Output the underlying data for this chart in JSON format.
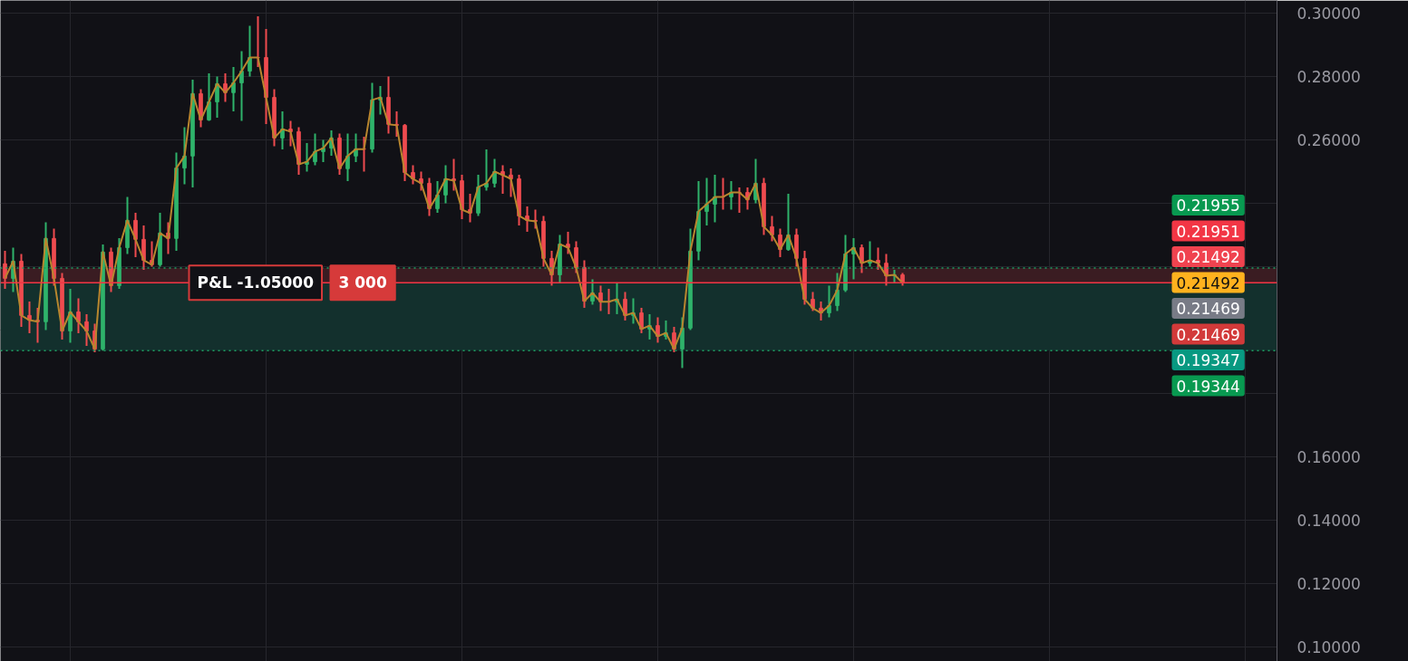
{
  "chart_data": {
    "type": "candlestick",
    "categories": [
      null,
      null,
      null,
      null,
      null,
      null,
      null,
      null,
      null,
      null,
      null,
      null,
      null,
      null,
      null,
      null,
      null,
      null,
      null,
      null,
      null,
      null,
      null,
      null,
      null,
      null,
      null,
      null,
      null,
      null,
      null,
      null,
      null,
      null,
      null,
      null,
      null,
      null,
      null,
      null,
      null,
      null,
      null,
      null,
      null,
      null,
      null,
      null,
      null,
      null,
      null,
      null,
      null,
      null,
      null,
      null,
      null,
      null,
      null,
      null,
      null,
      null,
      null,
      null,
      null,
      null,
      null,
      null,
      null,
      null,
      null,
      null,
      null,
      null,
      null,
      null,
      null,
      null,
      null,
      null,
      null,
      null,
      null,
      null,
      null,
      null,
      null,
      null,
      null,
      null,
      null,
      null,
      null,
      null,
      null,
      null,
      null,
      null,
      null,
      null,
      null,
      null,
      null,
      null,
      null,
      null,
      null,
      null,
      null,
      null,
      null
    ],
    "ohlc": [
      [
        0.2209,
        0.225,
        0.213,
        0.2163
      ],
      [
        0.2163,
        0.226,
        0.212,
        0.2217
      ],
      [
        0.2217,
        0.224,
        0.201,
        0.2046
      ],
      [
        0.2046,
        0.209,
        0.199,
        0.2031
      ],
      [
        0.2031,
        0.207,
        0.196,
        0.2026
      ],
      [
        0.2026,
        0.234,
        0.2,
        0.2289
      ],
      [
        0.2289,
        0.232,
        0.214,
        0.2163
      ],
      [
        0.2163,
        0.218,
        0.197,
        0.1997
      ],
      [
        0.1997,
        0.213,
        0.196,
        0.2057
      ],
      [
        0.2057,
        0.21,
        0.199,
        0.2026
      ],
      [
        0.2026,
        0.205,
        0.195,
        0.1997
      ],
      [
        0.1997,
        0.202,
        0.193,
        0.194
      ],
      [
        0.194,
        0.227,
        0.1935,
        0.2246
      ],
      [
        0.2246,
        0.226,
        0.212,
        0.214
      ],
      [
        0.214,
        0.229,
        0.213,
        0.226
      ],
      [
        0.226,
        0.242,
        0.224,
        0.2346
      ],
      [
        0.2346,
        0.237,
        0.223,
        0.2286
      ],
      [
        0.2286,
        0.233,
        0.219,
        0.222
      ],
      [
        0.222,
        0.228,
        0.22,
        0.2206
      ],
      [
        0.2206,
        0.237,
        0.22,
        0.2306
      ],
      [
        0.2306,
        0.234,
        0.224,
        0.2289
      ],
      [
        0.2289,
        0.256,
        0.225,
        0.2511
      ],
      [
        0.2511,
        0.264,
        0.246,
        0.2549
      ],
      [
        0.2549,
        0.279,
        0.245,
        0.2746
      ],
      [
        0.2746,
        0.276,
        0.264,
        0.2663
      ],
      [
        0.2663,
        0.281,
        0.266,
        0.272
      ],
      [
        0.272,
        0.28,
        0.267,
        0.2777
      ],
      [
        0.2777,
        0.281,
        0.272,
        0.2749
      ],
      [
        0.2749,
        0.283,
        0.269,
        0.278
      ],
      [
        0.278,
        0.288,
        0.266,
        0.2817
      ],
      [
        0.2817,
        0.296,
        0.28,
        0.286
      ],
      [
        0.286,
        0.299,
        0.283,
        0.286
      ],
      [
        0.286,
        0.295,
        0.265,
        0.2734
      ],
      [
        0.2734,
        0.276,
        0.258,
        0.2606
      ],
      [
        0.2606,
        0.269,
        0.257,
        0.2634
      ],
      [
        0.2634,
        0.266,
        0.258,
        0.2626
      ],
      [
        0.2626,
        0.264,
        0.249,
        0.2523
      ],
      [
        0.2523,
        0.259,
        0.25,
        0.2531
      ],
      [
        0.2531,
        0.262,
        0.252,
        0.2563
      ],
      [
        0.2563,
        0.26,
        0.253,
        0.2574
      ],
      [
        0.2574,
        0.263,
        0.255,
        0.2606
      ],
      [
        0.2606,
        0.262,
        0.249,
        0.2509
      ],
      [
        0.2509,
        0.262,
        0.247,
        0.2549
      ],
      [
        0.2549,
        0.262,
        0.253,
        0.2571
      ],
      [
        0.2571,
        0.261,
        0.25,
        0.2571
      ],
      [
        0.2571,
        0.278,
        0.256,
        0.2726
      ],
      [
        0.2726,
        0.277,
        0.268,
        0.2734
      ],
      [
        0.2734,
        0.28,
        0.262,
        0.2649
      ],
      [
        0.2649,
        0.269,
        0.261,
        0.2646
      ],
      [
        0.2646,
        0.265,
        0.247,
        0.2497
      ],
      [
        0.2497,
        0.252,
        0.246,
        0.2477
      ],
      [
        0.2477,
        0.25,
        0.244,
        0.2463
      ],
      [
        0.2463,
        0.248,
        0.236,
        0.2383
      ],
      [
        0.2383,
        0.247,
        0.237,
        0.2426
      ],
      [
        0.2426,
        0.252,
        0.24,
        0.2477
      ],
      [
        0.2477,
        0.254,
        0.244,
        0.2471
      ],
      [
        0.2471,
        0.249,
        0.235,
        0.238
      ],
      [
        0.238,
        0.243,
        0.234,
        0.2369
      ],
      [
        0.2369,
        0.249,
        0.236,
        0.2451
      ],
      [
        0.2451,
        0.257,
        0.244,
        0.2463
      ],
      [
        0.2463,
        0.254,
        0.245,
        0.25
      ],
      [
        0.25,
        0.252,
        0.243,
        0.2489
      ],
      [
        0.2489,
        0.251,
        0.242,
        0.2477
      ],
      [
        0.2477,
        0.249,
        0.233,
        0.236
      ],
      [
        0.236,
        0.239,
        0.231,
        0.2346
      ],
      [
        0.2346,
        0.238,
        0.232,
        0.2343
      ],
      [
        0.2343,
        0.236,
        0.22,
        0.2226
      ],
      [
        0.2226,
        0.225,
        0.214,
        0.2174
      ],
      [
        0.2174,
        0.23,
        0.215,
        0.2271
      ],
      [
        0.2271,
        0.231,
        0.224,
        0.226
      ],
      [
        0.226,
        0.228,
        0.218,
        0.2197
      ],
      [
        0.2197,
        0.222,
        0.207,
        0.2091
      ],
      [
        0.2091,
        0.216,
        0.208,
        0.2117
      ],
      [
        0.2117,
        0.214,
        0.206,
        0.2089
      ],
      [
        0.2089,
        0.213,
        0.205,
        0.2089
      ],
      [
        0.2089,
        0.215,
        0.205,
        0.2097
      ],
      [
        0.2097,
        0.212,
        0.203,
        0.2046
      ],
      [
        0.2046,
        0.21,
        0.202,
        0.2054
      ],
      [
        0.2054,
        0.207,
        0.199,
        0.2003
      ],
      [
        0.2003,
        0.205,
        0.197,
        0.2014
      ],
      [
        0.2014,
        0.204,
        0.196,
        0.198
      ],
      [
        0.198,
        0.203,
        0.197,
        0.1991
      ],
      [
        0.1991,
        0.201,
        0.193,
        0.194
      ],
      [
        0.194,
        0.204,
        0.188,
        0.2006
      ],
      [
        0.2006,
        0.232,
        0.2,
        0.2249
      ],
      [
        0.2249,
        0.247,
        0.222,
        0.2374
      ],
      [
        0.2374,
        0.248,
        0.233,
        0.2397
      ],
      [
        0.2397,
        0.249,
        0.234,
        0.242
      ],
      [
        0.242,
        0.248,
        0.238,
        0.242
      ],
      [
        0.242,
        0.247,
        0.238,
        0.2434
      ],
      [
        0.2434,
        0.245,
        0.237,
        0.2434
      ],
      [
        0.2434,
        0.245,
        0.238,
        0.2411
      ],
      [
        0.2411,
        0.254,
        0.24,
        0.2463
      ],
      [
        0.2463,
        0.248,
        0.23,
        0.2326
      ],
      [
        0.2326,
        0.236,
        0.228,
        0.23
      ],
      [
        0.23,
        0.232,
        0.223,
        0.2254
      ],
      [
        0.2254,
        0.243,
        0.225,
        0.23
      ],
      [
        0.23,
        0.232,
        0.22,
        0.2226
      ],
      [
        0.2226,
        0.225,
        0.208,
        0.2097
      ],
      [
        0.2097,
        0.212,
        0.206,
        0.2069
      ],
      [
        0.2069,
        0.209,
        0.203,
        0.2054
      ],
      [
        0.2054,
        0.214,
        0.204,
        0.2077
      ],
      [
        0.2077,
        0.218,
        0.206,
        0.2126
      ],
      [
        0.2126,
        0.23,
        0.212,
        0.224
      ],
      [
        0.224,
        0.229,
        0.216,
        0.226
      ],
      [
        0.226,
        0.227,
        0.218,
        0.2211
      ],
      [
        0.2211,
        0.228,
        0.22,
        0.222
      ],
      [
        0.222,
        0.226,
        0.219,
        0.2211
      ],
      [
        0.2211,
        0.224,
        0.214,
        0.2171
      ],
      [
        0.2171,
        0.219,
        0.215,
        0.2174
      ],
      [
        0.2174,
        0.218,
        0.214,
        0.2149
      ]
    ],
    "series": [
      {
        "type": "line",
        "color": "#b8862e",
        "values": [
          0.2163,
          0.2217,
          0.2046,
          0.2031,
          0.2026,
          0.2289,
          0.2163,
          0.1997,
          0.2057,
          0.2026,
          0.1997,
          0.194,
          0.2246,
          0.214,
          0.226,
          0.2346,
          0.2286,
          0.222,
          0.2206,
          0.2306,
          0.2289,
          0.2511,
          0.2549,
          0.2746,
          0.2663,
          0.272,
          0.2777,
          0.2749,
          0.278,
          0.2817,
          0.286,
          0.286,
          0.2734,
          0.2606,
          0.2634,
          0.2626,
          0.2523,
          0.2531,
          0.2563,
          0.2574,
          0.2606,
          0.2509,
          0.2549,
          0.2571,
          0.2571,
          0.2726,
          0.2734,
          0.2649,
          0.2646,
          0.2497,
          0.2477,
          0.2463,
          0.2383,
          0.2426,
          0.2477,
          0.2471,
          0.238,
          0.2369,
          0.2451,
          0.2463,
          0.25,
          0.2489,
          0.2477,
          0.236,
          0.2346,
          0.2343,
          0.2226,
          0.2174,
          0.2271,
          0.226,
          0.2197,
          0.2091,
          0.2117,
          0.2089,
          0.2089,
          0.2097,
          0.2046,
          0.2054,
          0.2003,
          0.2014,
          0.198,
          0.1991,
          0.194,
          0.2006,
          0.2249,
          0.2374,
          0.2397,
          0.242,
          0.242,
          0.2434,
          0.2434,
          0.2411,
          0.2463,
          0.2326,
          0.23,
          0.2254,
          0.23,
          0.2226,
          0.2097,
          0.2069,
          0.2054,
          0.2077,
          0.2126,
          0.224,
          0.226,
          0.2211,
          0.222,
          0.2211,
          0.2171,
          0.2174,
          0.2149
        ]
      }
    ],
    "ylim": [
      0.0954,
      0.304
    ],
    "yticks": [
      {
        "value": 0.1,
        "label": "0.10000"
      },
      {
        "value": 0.12,
        "label": "0.12000"
      },
      {
        "value": 0.14,
        "label": "0.14000"
      },
      {
        "value": 0.16,
        "label": "0.16000"
      },
      {
        "value": 0.18,
        "label": null
      },
      {
        "value": 0.2,
        "label": null
      },
      {
        "value": 0.22,
        "label": null
      },
      {
        "value": 0.24,
        "label": null
      },
      {
        "value": 0.26,
        "label": "0.26000"
      },
      {
        "value": 0.28,
        "label": "0.28000"
      },
      {
        "value": 0.3,
        "label": "0.30000"
      }
    ],
    "tick_labels": "y",
    "grid": true,
    "ref_lines": [
      {
        "axis": "y",
        "value": 0.21955,
        "color": "#1e9e63",
        "line_style": "dotted"
      },
      {
        "axis": "y",
        "value": 0.21492,
        "color": "#f23645",
        "line_style": "solid"
      },
      {
        "axis": "y",
        "value": 0.19347,
        "color": "#1e9e63",
        "line_style": "dotted"
      }
    ],
    "bands": [
      {
        "axis": "y",
        "from": 0.21492,
        "to": 0.21955,
        "color": "#3a1c22"
      },
      {
        "axis": "y",
        "from": 0.19347,
        "to": 0.21492,
        "color": "#13302d"
      }
    ],
    "annotations": [
      "P&L -1.05000",
      "3 000",
      "0.21955",
      "0.21951",
      "0.21492",
      "0.21492",
      "0.21469",
      "0.21469",
      "0.19347",
      "0.19344"
    ]
  }
}
